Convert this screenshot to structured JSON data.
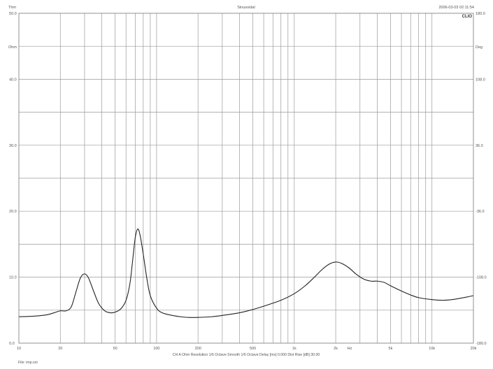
{
  "header": {
    "left": "Thm",
    "center": "Sinusoidal",
    "right": "2006-03-03 02:11:54",
    "logo": "CLIO"
  },
  "footer": {
    "info": "CH A   Ohm   Resolution 1/6 Octave   Smooth 1/6 Octave   Delay [ms] 0.000   Dist Rise [dB] 30.00",
    "file": "File: imp.sni"
  },
  "chart_data": {
    "type": "line",
    "title": "Sinusoidal",
    "x_scale": "log",
    "xlim": [
      10,
      20000
    ],
    "ylim": [
      0,
      50
    ],
    "y2lim": [
      -180,
      180
    ],
    "left_unit": "Ohm",
    "right_unit": "Deg",
    "x_unit": "Hz",
    "grid": true,
    "x_ticks": [
      {
        "v": 10,
        "label": "10"
      },
      {
        "v": 20,
        "label": "20"
      },
      {
        "v": 50,
        "label": "50"
      },
      {
        "v": 100,
        "label": "100"
      },
      {
        "v": 200,
        "label": "200"
      },
      {
        "v": 500,
        "label": "500"
      },
      {
        "v": 1000,
        "label": "1k"
      },
      {
        "v": 2000,
        "label": "2k"
      },
      {
        "v": 5000,
        "label": "5k"
      },
      {
        "v": 10000,
        "label": "10k"
      },
      {
        "v": 20000,
        "label": "20k"
      }
    ],
    "y_ticks": [
      {
        "v": 50,
        "label": "50.0"
      },
      {
        "v": 40,
        "label": "40.0"
      },
      {
        "v": 30,
        "label": "30.0"
      },
      {
        "v": 20,
        "label": "20.0"
      },
      {
        "v": 10,
        "label": "10.0"
      },
      {
        "v": 0,
        "label": "0.0"
      }
    ],
    "y2_ticks": [
      {
        "v": 180,
        "label": "180.0"
      },
      {
        "v": 108,
        "label": "108.0"
      },
      {
        "v": 36,
        "label": "36.0"
      },
      {
        "v": -36,
        "label": "-36.0"
      },
      {
        "v": -108,
        "label": "-108.0"
      },
      {
        "v": -180,
        "label": "-180.0"
      }
    ],
    "series": [
      {
        "color": "#222222",
        "points": [
          [
            10,
            4.0
          ],
          [
            13,
            4.1
          ],
          [
            16,
            4.3
          ],
          [
            18,
            4.6
          ],
          [
            20,
            4.9
          ],
          [
            22,
            4.9
          ],
          [
            24,
            5.5
          ],
          [
            26,
            7.8
          ],
          [
            28,
            9.9
          ],
          [
            30,
            10.5
          ],
          [
            32,
            9.9
          ],
          [
            35,
            7.8
          ],
          [
            38,
            6.0
          ],
          [
            42,
            4.9
          ],
          [
            46,
            4.6
          ],
          [
            50,
            4.7
          ],
          [
            55,
            5.2
          ],
          [
            60,
            6.5
          ],
          [
            64,
            9.0
          ],
          [
            67,
            12.5
          ],
          [
            70,
            16.0
          ],
          [
            73,
            17.3
          ],
          [
            76,
            16.3
          ],
          [
            80,
            13.5
          ],
          [
            85,
            9.8
          ],
          [
            90,
            7.2
          ],
          [
            100,
            5.3
          ],
          [
            110,
            4.6
          ],
          [
            130,
            4.2
          ],
          [
            150,
            4.0
          ],
          [
            170,
            3.9
          ],
          [
            200,
            3.9
          ],
          [
            250,
            4.0
          ],
          [
            300,
            4.2
          ],
          [
            400,
            4.6
          ],
          [
            500,
            5.1
          ],
          [
            600,
            5.6
          ],
          [
            800,
            6.5
          ],
          [
            1000,
            7.5
          ],
          [
            1200,
            8.7
          ],
          [
            1400,
            10.0
          ],
          [
            1600,
            11.2
          ],
          [
            1800,
            12.0
          ],
          [
            2000,
            12.3
          ],
          [
            2200,
            12.1
          ],
          [
            2500,
            11.4
          ],
          [
            2800,
            10.5
          ],
          [
            3200,
            9.7
          ],
          [
            3600,
            9.4
          ],
          [
            4000,
            9.4
          ],
          [
            4500,
            9.2
          ],
          [
            5000,
            8.7
          ],
          [
            6000,
            7.9
          ],
          [
            7000,
            7.3
          ],
          [
            8000,
            6.9
          ],
          [
            10000,
            6.6
          ],
          [
            12000,
            6.5
          ],
          [
            14000,
            6.6
          ],
          [
            16000,
            6.8
          ],
          [
            18000,
            7.0
          ],
          [
            20000,
            7.2
          ]
        ]
      }
    ]
  }
}
